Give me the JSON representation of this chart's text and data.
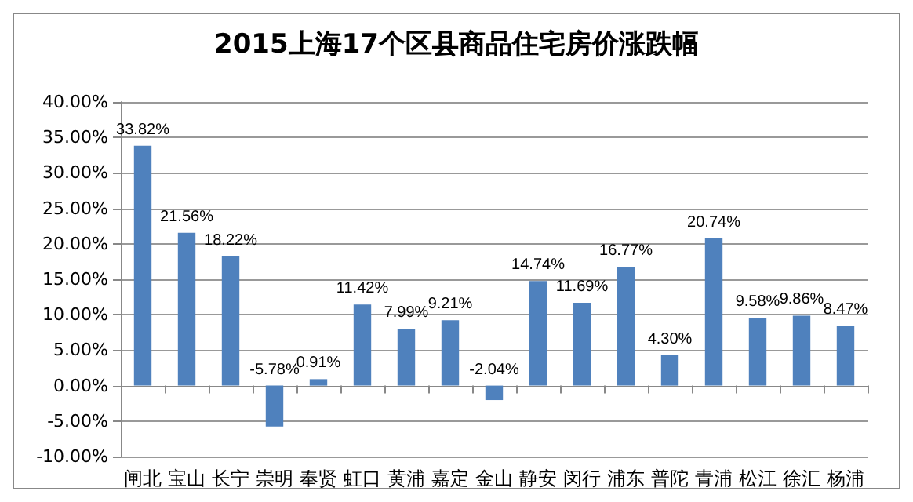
{
  "chart_data": {
    "type": "bar",
    "title": "2015上海17个区县商品住宅房价涨跌幅",
    "categories": [
      "闸北",
      "宝山",
      "长宁",
      "崇明",
      "奉贤",
      "虹口",
      "黄浦",
      "嘉定",
      "金山",
      "静安",
      "闵行",
      "浦东",
      "普陀",
      "青浦",
      "松江",
      "徐汇",
      "杨浦"
    ],
    "values": [
      33.82,
      21.56,
      18.22,
      -5.78,
      0.91,
      11.42,
      7.99,
      9.21,
      -2.04,
      14.74,
      11.69,
      16.77,
      4.3,
      20.74,
      9.58,
      9.86,
      8.47
    ],
    "value_labels": [
      "33.82%",
      "21.56%",
      "18.22%",
      "-5.78%",
      "0.91%",
      "11.42%",
      "7.99%",
      "9.21%",
      "-2.04%",
      "14.74%",
      "11.69%",
      "16.77%",
      "4.30%",
      "20.74%",
      "9.58%",
      "9.86%",
      "8.47%"
    ],
    "color": "#4f81bd",
    "ylim": [
      -10,
      40
    ],
    "yticks": [
      {
        "value": -10,
        "label": "-10.00%"
      },
      {
        "value": -5,
        "label": "-5.00%"
      },
      {
        "value": 0,
        "label": "0.00%"
      },
      {
        "value": 5,
        "label": "5.00%"
      },
      {
        "value": 10,
        "label": "10.00%"
      },
      {
        "value": 15,
        "label": "15.00%"
      },
      {
        "value": 20,
        "label": "20.00%"
      },
      {
        "value": 25,
        "label": "25.00%"
      },
      {
        "value": 30,
        "label": "30.00%"
      },
      {
        "value": 35,
        "label": "35.00%"
      },
      {
        "value": 40,
        "label": "40.00%"
      }
    ],
    "grid": "y"
  }
}
